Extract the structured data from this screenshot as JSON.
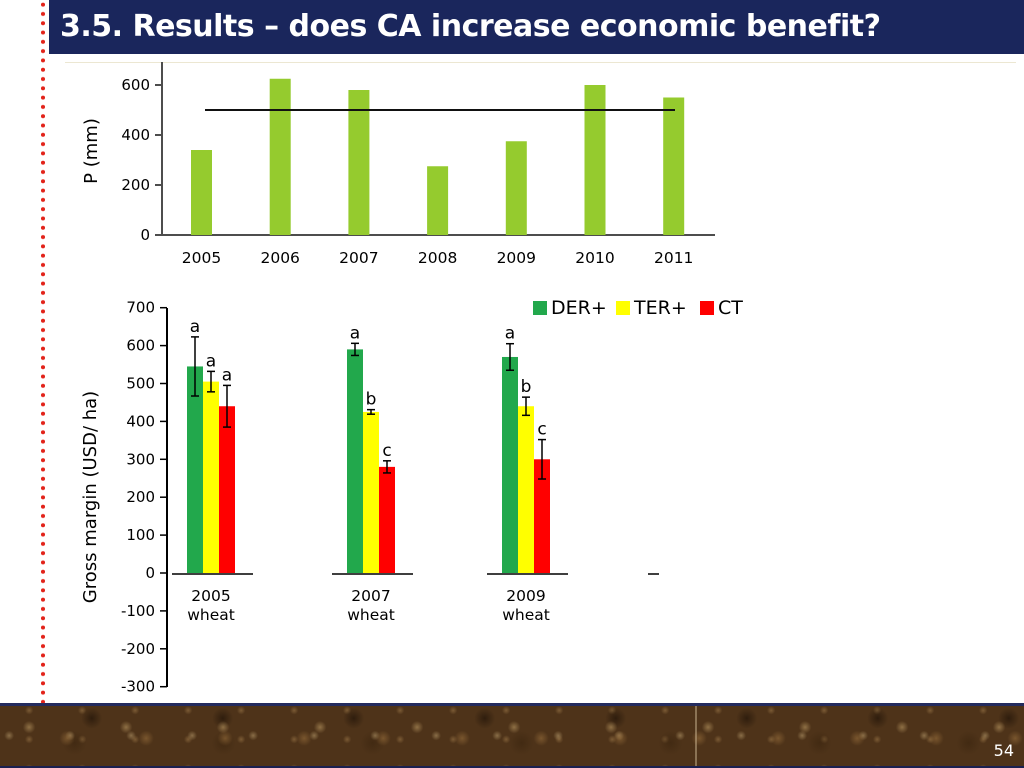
{
  "slide": {
    "title": "3.5. Results – does CA increase economic benefit?",
    "page_number": "54",
    "colors": {
      "title_bar_navy": "#1a265c",
      "dotted_line_red": "#e2231a",
      "precip_bar_green": "#95cb2e",
      "der_green": "#22a84c",
      "ter_yellow": "#ffff00",
      "ct_red": "#ff0000"
    }
  },
  "chart_data": [
    {
      "id": "precipitation",
      "type": "bar",
      "title": "",
      "xlabel": "",
      "ylabel": "P (mm)",
      "categories": [
        "2005",
        "2006",
        "2007",
        "2008",
        "2009",
        "2010",
        "2011"
      ],
      "values": [
        340,
        625,
        580,
        275,
        375,
        600,
        550
      ],
      "bar_color": "#95cb2e",
      "ylim": [
        0,
        700
      ],
      "yticks": [
        0,
        200,
        400,
        600
      ],
      "grid": false,
      "legend_position": "none",
      "reference_line": {
        "value": 500,
        "color": "#111111"
      }
    },
    {
      "id": "gross-margin",
      "type": "bar",
      "title": "",
      "xlabel": "",
      "ylabel": "Gross margin (USD/ ha)",
      "categories": [
        {
          "year": "2005",
          "crop": "wheat"
        },
        {
          "year": "2007",
          "crop": "wheat"
        },
        {
          "year": "2009",
          "crop": "wheat"
        }
      ],
      "series": [
        {
          "name": "DER+",
          "color": "#22a84c",
          "values": [
            545,
            590,
            570
          ],
          "errors": [
            78,
            16,
            35
          ],
          "letters": [
            "a",
            "a",
            "a"
          ]
        },
        {
          "name": "TER+",
          "color": "#ffff00",
          "values": [
            505,
            425,
            440
          ],
          "errors": [
            27,
            6,
            24
          ],
          "letters": [
            "a",
            "b",
            "b"
          ]
        },
        {
          "name": "CT",
          "color": "#ff0000",
          "values": [
            440,
            280,
            300
          ],
          "errors": [
            55,
            16,
            52
          ],
          "letters": [
            "a",
            "c",
            "c"
          ]
        }
      ],
      "ylim": [
        -300,
        700
      ],
      "yticks": [
        700,
        600,
        500,
        400,
        300,
        200,
        100,
        0,
        -100,
        -200,
        -300
      ],
      "grid": false,
      "legend_position": "top-right",
      "error_bars": true,
      "significance_letters": true
    }
  ]
}
